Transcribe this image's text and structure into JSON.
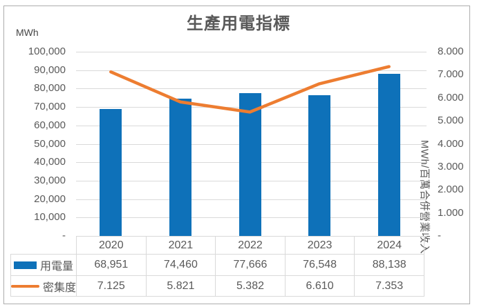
{
  "chart": {
    "title": "生產用電指標",
    "left_axis": {
      "unit": "MWh",
      "ticks": [
        "100,000",
        "90,000",
        "80,000",
        "70,000",
        "60,000",
        "50,000",
        "40,000",
        "30,000",
        "20,000",
        "10,000",
        "-"
      ]
    },
    "right_axis": {
      "title": "MWh/百萬合併營業收入",
      "ticks": [
        "8.000",
        "7.000",
        "6.000",
        "5.000",
        "4.000",
        "3.000",
        "2.000",
        "1.000",
        "-"
      ]
    },
    "colors": {
      "bar": "#0E71B9",
      "line": "#ED7D31",
      "grid": "#D9D9D9",
      "text": "#595959",
      "border": "#ACACAC"
    }
  },
  "chart_data": {
    "type": "combo",
    "title": "生產用電指標",
    "categories": [
      "2020",
      "2021",
      "2022",
      "2023",
      "2024"
    ],
    "series": [
      {
        "name": "用電量",
        "type": "bar",
        "axis": "left",
        "values": [
          68951,
          74460,
          77666,
          76548,
          88138
        ],
        "display": [
          "68,951",
          "74,460",
          "77,666",
          "76,548",
          "88,138"
        ],
        "color": "#0E71B9"
      },
      {
        "name": "密集度",
        "type": "line",
        "axis": "right",
        "values": [
          7.125,
          5.821,
          5.382,
          6.61,
          7.353
        ],
        "display": [
          "7.125",
          "5.821",
          "5.382",
          "6.610",
          "7.353"
        ],
        "color": "#ED7D31"
      }
    ],
    "left_ylabel": "MWh",
    "right_ylabel": "MWh/百萬合併營業收入",
    "left_ylim": [
      0,
      100000
    ],
    "left_tick_step": 10000,
    "right_ylim": [
      0,
      8
    ],
    "right_tick_step": 1,
    "grid": true,
    "legend_position": "bottom-data-table"
  }
}
